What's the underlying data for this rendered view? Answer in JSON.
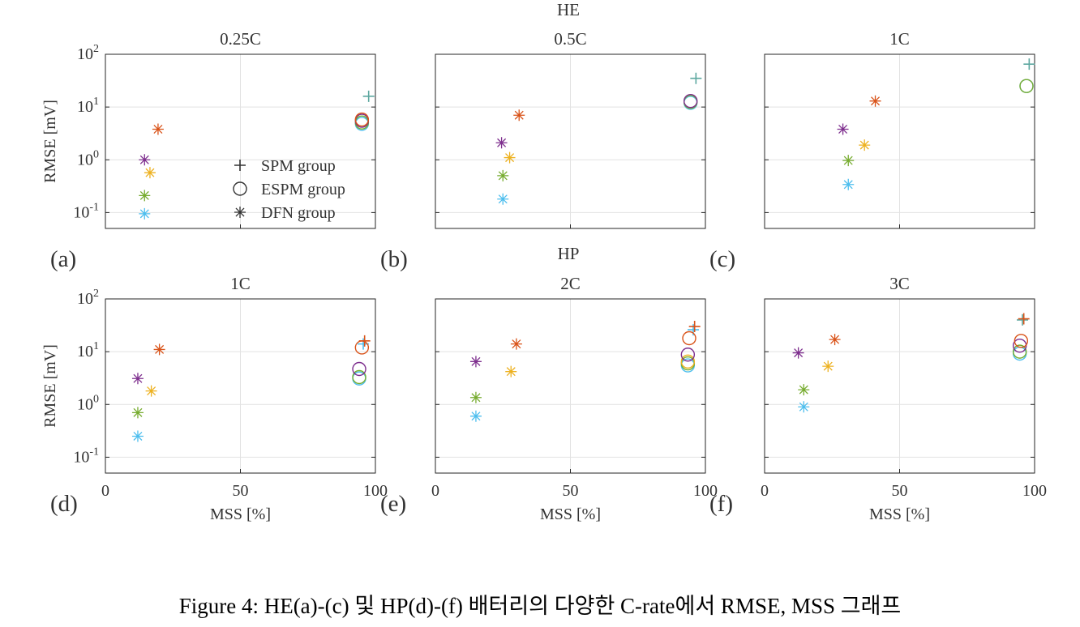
{
  "figure": {
    "group_labels": [
      "HE",
      "HP"
    ],
    "caption": "Figure 4: HE(a)-(c) 및 HP(d)-(f) 배터리의 다양한 C-rate에서 RMSE, MSS 그래프",
    "legend": {
      "entries": [
        {
          "marker": "plus",
          "label": "SPM group"
        },
        {
          "marker": "circle",
          "label": "ESPM group"
        },
        {
          "marker": "asterisk",
          "label": "DFN group"
        }
      ]
    },
    "colors": {
      "blue": "#4DBEEE",
      "green": "#77AC30",
      "yellow": "#EDB120",
      "purple": "#7E2F8E",
      "orange": "#D95319",
      "teal": "#5EA8A0"
    }
  },
  "chart_data": [
    {
      "type": "scatter",
      "panel": "(a)",
      "group": "HE",
      "title": "0.25C",
      "ylabel": "RMSE [mV]",
      "xlabel": "",
      "yscale": "log",
      "xlim": [
        0,
        100
      ],
      "ylim": [
        0.05,
        100
      ],
      "grid": true,
      "x_ticks": [],
      "y_ticks": [
        "10^-1",
        "10^0",
        "10^1",
        "10^2"
      ],
      "legend_placement": "lower-center",
      "series": [
        {
          "marker": "plus",
          "points": [
            {
              "x": 97.5,
              "y": 16,
              "color": "teal"
            }
          ]
        },
        {
          "marker": "circle",
          "points": [
            {
              "x": 95,
              "y": 4.8,
              "color": "blue"
            },
            {
              "x": 95,
              "y": 5.1,
              "color": "green"
            },
            {
              "x": 95,
              "y": 5.5,
              "color": "purple"
            },
            {
              "x": 95,
              "y": 5.8,
              "color": "orange"
            }
          ]
        },
        {
          "marker": "asterisk",
          "points": [
            {
              "x": 14.5,
              "y": 0.095,
              "color": "blue"
            },
            {
              "x": 14.5,
              "y": 0.21,
              "color": "green"
            },
            {
              "x": 16.5,
              "y": 0.57,
              "color": "yellow"
            },
            {
              "x": 14.5,
              "y": 1.0,
              "color": "purple"
            },
            {
              "x": 19.5,
              "y": 3.8,
              "color": "orange"
            }
          ]
        }
      ]
    },
    {
      "type": "scatter",
      "panel": "(b)",
      "group": "HE",
      "title": "0.5C",
      "ylabel": "",
      "xlabel": "",
      "yscale": "log",
      "xlim": [
        0,
        100
      ],
      "ylim": [
        0.05,
        100
      ],
      "grid": true,
      "x_ticks": [],
      "y_ticks": [],
      "series": [
        {
          "marker": "plus",
          "points": [
            {
              "x": 96.5,
              "y": 35,
              "color": "teal"
            }
          ]
        },
        {
          "marker": "circle",
          "points": [
            {
              "x": 94.5,
              "y": 12,
              "color": "blue"
            },
            {
              "x": 94.5,
              "y": 12.5,
              "color": "green"
            },
            {
              "x": 94.5,
              "y": 13,
              "color": "purple"
            }
          ]
        },
        {
          "marker": "asterisk",
          "points": [
            {
              "x": 25,
              "y": 0.18,
              "color": "blue"
            },
            {
              "x": 25,
              "y": 0.5,
              "color": "green"
            },
            {
              "x": 27.5,
              "y": 1.1,
              "color": "yellow"
            },
            {
              "x": 24.5,
              "y": 2.1,
              "color": "purple"
            },
            {
              "x": 31,
              "y": 7.0,
              "color": "orange"
            }
          ]
        }
      ]
    },
    {
      "type": "scatter",
      "panel": "(c)",
      "group": "HE",
      "title": "1C",
      "ylabel": "",
      "xlabel": "",
      "yscale": "log",
      "xlim": [
        0,
        100
      ],
      "ylim": [
        0.05,
        100
      ],
      "grid": true,
      "x_ticks": [],
      "y_ticks": [],
      "series": [
        {
          "marker": "plus",
          "points": [
            {
              "x": 98,
              "y": 65,
              "color": "teal"
            }
          ]
        },
        {
          "marker": "circle",
          "points": [
            {
              "x": 97,
              "y": 25,
              "color": "blue"
            },
            {
              "x": 97,
              "y": 25,
              "color": "green"
            }
          ]
        },
        {
          "marker": "asterisk",
          "points": [
            {
              "x": 31,
              "y": 0.34,
              "color": "blue"
            },
            {
              "x": 31,
              "y": 0.97,
              "color": "green"
            },
            {
              "x": 37,
              "y": 1.9,
              "color": "yellow"
            },
            {
              "x": 29,
              "y": 3.8,
              "color": "purple"
            },
            {
              "x": 41,
              "y": 13,
              "color": "orange"
            }
          ]
        }
      ]
    },
    {
      "type": "scatter",
      "panel": "(d)",
      "group": "HP",
      "title": "1C",
      "ylabel": "RMSE [mV]",
      "xlabel": "MSS [%]",
      "yscale": "log",
      "xlim": [
        0,
        100
      ],
      "ylim": [
        0.05,
        100
      ],
      "grid": true,
      "x_ticks": [
        "0",
        "50",
        "100"
      ],
      "y_ticks": [
        "10^-1",
        "10^0",
        "10^1",
        "10^2"
      ],
      "series": [
        {
          "marker": "plus",
          "points": [
            {
              "x": 95.5,
              "y": 14,
              "color": "blue"
            },
            {
              "x": 96,
              "y": 16,
              "color": "orange"
            }
          ]
        },
        {
          "marker": "circle",
          "points": [
            {
              "x": 94,
              "y": 3.1,
              "color": "blue"
            },
            {
              "x": 94,
              "y": 3.3,
              "color": "green"
            },
            {
              "x": 94,
              "y": 4.7,
              "color": "purple"
            },
            {
              "x": 95,
              "y": 12,
              "color": "orange"
            }
          ]
        },
        {
          "marker": "asterisk",
          "points": [
            {
              "x": 12,
              "y": 0.25,
              "color": "blue"
            },
            {
              "x": 12,
              "y": 0.7,
              "color": "green"
            },
            {
              "x": 17,
              "y": 1.8,
              "color": "yellow"
            },
            {
              "x": 12,
              "y": 3.1,
              "color": "purple"
            },
            {
              "x": 20,
              "y": 11,
              "color": "orange"
            }
          ]
        }
      ]
    },
    {
      "type": "scatter",
      "panel": "(e)",
      "group": "HP",
      "title": "2C",
      "ylabel": "",
      "xlabel": "MSS [%]",
      "yscale": "log",
      "xlim": [
        0,
        100
      ],
      "ylim": [
        0.05,
        100
      ],
      "grid": true,
      "x_ticks": [
        "0",
        "50",
        "100"
      ],
      "y_ticks": [],
      "series": [
        {
          "marker": "plus",
          "points": [
            {
              "x": 95.5,
              "y": 26,
              "color": "blue"
            },
            {
              "x": 96,
              "y": 30,
              "color": "orange"
            }
          ]
        },
        {
          "marker": "circle",
          "points": [
            {
              "x": 93.5,
              "y": 5.5,
              "color": "blue"
            },
            {
              "x": 93.5,
              "y": 6.0,
              "color": "green"
            },
            {
              "x": 93.5,
              "y": 6.5,
              "color": "yellow"
            },
            {
              "x": 93.5,
              "y": 8.8,
              "color": "purple"
            },
            {
              "x": 94,
              "y": 18,
              "color": "orange"
            }
          ]
        },
        {
          "marker": "asterisk",
          "points": [
            {
              "x": 15,
              "y": 0.6,
              "color": "blue"
            },
            {
              "x": 15,
              "y": 1.35,
              "color": "green"
            },
            {
              "x": 28,
              "y": 4.2,
              "color": "yellow"
            },
            {
              "x": 15,
              "y": 6.5,
              "color": "purple"
            },
            {
              "x": 30,
              "y": 14,
              "color": "orange"
            }
          ]
        }
      ]
    },
    {
      "type": "scatter",
      "panel": "(f)",
      "group": "HP",
      "title": "3C",
      "ylabel": "",
      "xlabel": "MSS [%]",
      "yscale": "log",
      "xlim": [
        0,
        100
      ],
      "ylim": [
        0.05,
        100
      ],
      "grid": true,
      "x_ticks": [
        "0",
        "50",
        "100"
      ],
      "y_ticks": [],
      "series": [
        {
          "marker": "plus",
          "points": [
            {
              "x": 95.5,
              "y": 40,
              "color": "teal"
            },
            {
              "x": 96,
              "y": 42,
              "color": "orange"
            }
          ]
        },
        {
          "marker": "circle",
          "points": [
            {
              "x": 94.5,
              "y": 9.2,
              "color": "blue"
            },
            {
              "x": 94.5,
              "y": 10,
              "color": "green"
            },
            {
              "x": 94.5,
              "y": 13,
              "color": "purple"
            },
            {
              "x": 95,
              "y": 16,
              "color": "orange"
            }
          ]
        },
        {
          "marker": "asterisk",
          "points": [
            {
              "x": 14.5,
              "y": 0.9,
              "color": "blue"
            },
            {
              "x": 14.5,
              "y": 1.9,
              "color": "green"
            },
            {
              "x": 23.5,
              "y": 5.3,
              "color": "yellow"
            },
            {
              "x": 12.5,
              "y": 9.5,
              "color": "purple"
            },
            {
              "x": 26,
              "y": 17,
              "color": "orange"
            }
          ]
        }
      ]
    }
  ]
}
